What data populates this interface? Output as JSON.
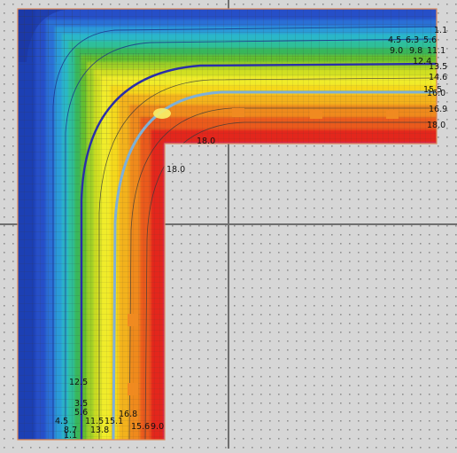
{
  "title": "",
  "colors": {
    "background": "#d6d6d6",
    "grid_dot": "#8f8f8f",
    "axis_line": "#6f6f6f",
    "outline": "#e08a5a",
    "mesh": "#3a3a3a",
    "band_palette": [
      "#1f3fb4",
      "#2550c8",
      "#2a6fd6",
      "#2a9ad8",
      "#29b7c8",
      "#2fbf9a",
      "#39b75a",
      "#63bf2f",
      "#9fcf27",
      "#d0df24",
      "#f0ec2c",
      "#f5d81f",
      "#f3b21c",
      "#ef8a1f",
      "#ea5a1d",
      "#e3281f"
    ],
    "insulation_line": "#2a2fa8",
    "interface_line": "#7fb0d6",
    "hot_spot": "#f08a20"
  },
  "isotherm_labels": [
    {
      "id": "l1",
      "text": "1.1"
    },
    {
      "id": "l2",
      "text": "4.5"
    },
    {
      "id": "l3",
      "text": "6.3"
    },
    {
      "id": "l4",
      "text": "5.6"
    },
    {
      "id": "l5",
      "text": "9.0"
    },
    {
      "id": "l6",
      "text": "9.8"
    },
    {
      "id": "l7",
      "text": "11.1"
    },
    {
      "id": "l8",
      "text": "12.4"
    },
    {
      "id": "l9",
      "text": "13.5"
    },
    {
      "id": "l10",
      "text": "14.6"
    },
    {
      "id": "l11",
      "text": "15.5"
    },
    {
      "id": "l12",
      "text": "16.0"
    },
    {
      "id": "l13",
      "text": "16.9"
    },
    {
      "id": "l14",
      "text": "18.0"
    },
    {
      "id": "l15",
      "text": "18.0"
    },
    {
      "id": "l16",
      "text": "18.0"
    },
    {
      "id": "l17",
      "text": "9.0"
    },
    {
      "id": "l18",
      "text": "12.5"
    },
    {
      "id": "l19",
      "text": "3.5"
    },
    {
      "id": "l20",
      "text": "5.6"
    },
    {
      "id": "l21",
      "text": "4.5"
    },
    {
      "id": "l22",
      "text": "8.7"
    },
    {
      "id": "l23",
      "text": "11.5"
    },
    {
      "id": "l24",
      "text": "13.8"
    },
    {
      "id": "l25",
      "text": "15.1"
    },
    {
      "id": "l26",
      "text": "16.8"
    },
    {
      "id": "l27",
      "text": "15.6"
    },
    {
      "id": "l28",
      "text": "1.1"
    }
  ]
}
